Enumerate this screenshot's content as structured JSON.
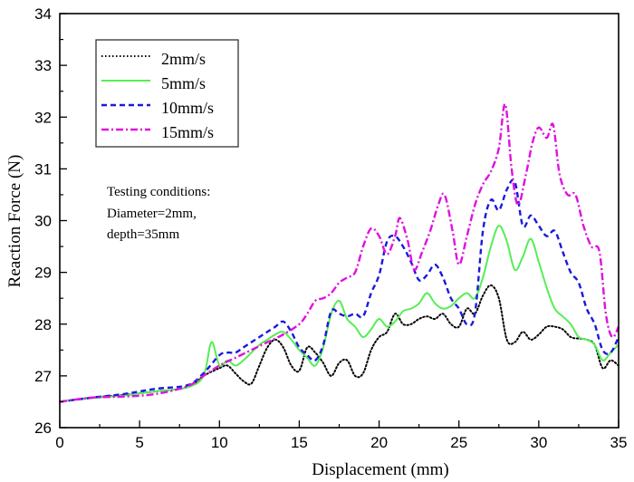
{
  "chart_data": {
    "type": "line",
    "title": "",
    "xlabel": "Displacement (mm)",
    "ylabel": "Reaction Force (N)",
    "xlim": [
      0,
      35
    ],
    "ylim": [
      26,
      34
    ],
    "xticks": [
      0,
      5,
      10,
      15,
      20,
      25,
      30,
      35
    ],
    "xtick_labels": [
      "0",
      "5",
      "10",
      "15",
      "20",
      "25",
      "30",
      "35"
    ],
    "yticks": [
      26,
      27,
      28,
      29,
      30,
      31,
      32,
      33,
      34
    ],
    "ytick_labels": [
      "26",
      "27",
      "28",
      "29",
      "30",
      "31",
      "32",
      "33",
      "34"
    ],
    "grid": false,
    "legend_position": "top-left",
    "annotation": [
      "Testing conditions:",
      "Diameter=2mm,",
      "depth=35mm"
    ],
    "series": [
      {
        "name": "2mm/s",
        "color": "#000000",
        "style": "dotted",
        "x": [
          0,
          2,
          4,
          6,
          8,
          9,
          10,
          10.5,
          11,
          11.5,
          12,
          12.5,
          13,
          13.5,
          14,
          14.5,
          15,
          15.5,
          16,
          16.5,
          17,
          17.5,
          18,
          18.5,
          19,
          19.5,
          20,
          20.5,
          21,
          21.5,
          22,
          22.5,
          23,
          23.5,
          24,
          24.5,
          25,
          25.5,
          26,
          26.5,
          27,
          27.5,
          28,
          28.5,
          29,
          29.5,
          30,
          30.5,
          31,
          31.5,
          32,
          32.5,
          33,
          33.5,
          34,
          34.5,
          35
        ],
        "values": [
          26.5,
          26.58,
          26.63,
          26.7,
          26.78,
          27.0,
          27.15,
          27.2,
          27.05,
          26.9,
          26.85,
          27.2,
          27.55,
          27.7,
          27.55,
          27.2,
          27.1,
          27.55,
          27.45,
          27.25,
          27.0,
          27.25,
          27.3,
          27.0,
          27.05,
          27.5,
          27.75,
          27.85,
          28.2,
          28.0,
          28.0,
          28.1,
          28.15,
          28.1,
          28.2,
          28.0,
          27.95,
          28.3,
          28.2,
          28.55,
          28.75,
          28.5,
          27.7,
          27.65,
          27.85,
          27.7,
          27.8,
          27.95,
          27.95,
          27.9,
          27.75,
          27.72,
          27.7,
          27.6,
          27.15,
          27.3,
          27.2
        ]
      },
      {
        "name": "5mm/s",
        "color": "#55ee55",
        "style": "solid",
        "x": [
          0,
          2,
          4,
          6,
          8,
          9,
          9.5,
          10,
          10.5,
          11,
          11.5,
          12,
          12.5,
          13,
          13.5,
          14,
          14.5,
          15,
          15.5,
          16,
          16.5,
          17,
          17.5,
          18,
          18.5,
          19,
          19.5,
          20,
          20.5,
          21,
          21.5,
          22,
          22.5,
          23,
          23.5,
          24,
          24.5,
          25,
          25.5,
          26,
          26.5,
          27,
          27.5,
          28,
          28.5,
          29,
          29.5,
          30,
          30.5,
          31,
          31.5,
          32,
          32.5,
          33,
          33.5,
          34,
          34.5,
          35
        ],
        "values": [
          26.5,
          26.57,
          26.62,
          26.7,
          26.78,
          27.0,
          27.65,
          27.2,
          27.3,
          27.2,
          27.3,
          27.45,
          27.6,
          27.7,
          27.8,
          27.85,
          27.7,
          27.5,
          27.35,
          27.2,
          27.55,
          28.2,
          28.45,
          28.1,
          27.95,
          27.75,
          27.9,
          28.1,
          27.95,
          28.05,
          28.25,
          28.3,
          28.4,
          28.6,
          28.4,
          28.3,
          28.35,
          28.5,
          28.6,
          28.5,
          28.9,
          29.5,
          29.9,
          29.6,
          29.05,
          29.3,
          29.65,
          29.2,
          28.7,
          28.3,
          28.15,
          28.0,
          27.75,
          27.7,
          27.6,
          27.3,
          27.45,
          27.6
        ]
      },
      {
        "name": "10mm/s",
        "color": "#1a1adc",
        "style": "dashed",
        "x": [
          0,
          2,
          4,
          6,
          8,
          9,
          10,
          10.5,
          11,
          11.5,
          12,
          12.5,
          13,
          13.5,
          14,
          14.5,
          15,
          15.5,
          16,
          16.5,
          17,
          17.5,
          18,
          18.5,
          19,
          19.5,
          20,
          20.5,
          21,
          21.5,
          22,
          22.5,
          23,
          23.5,
          24,
          24.5,
          25,
          25.5,
          26,
          26.5,
          27,
          27.5,
          28,
          28.5,
          29,
          29.5,
          30,
          30.5,
          31,
          31.5,
          32,
          32.5,
          33,
          33.5,
          34,
          34.5,
          35
        ],
        "values": [
          26.5,
          26.58,
          26.65,
          26.75,
          26.82,
          27.05,
          27.4,
          27.45,
          27.45,
          27.55,
          27.65,
          27.75,
          27.85,
          27.95,
          28.05,
          27.85,
          27.55,
          27.4,
          27.3,
          27.6,
          28.25,
          28.2,
          28.15,
          28.2,
          28.15,
          28.6,
          28.95,
          29.6,
          29.7,
          29.5,
          29.2,
          28.85,
          28.95,
          29.15,
          28.9,
          28.5,
          28.3,
          28.0,
          28.2,
          29.8,
          30.4,
          30.2,
          30.6,
          30.75,
          29.9,
          30.1,
          29.9,
          29.7,
          29.8,
          29.4,
          29.0,
          28.8,
          28.3,
          28.0,
          27.5,
          27.45,
          27.75
        ]
      },
      {
        "name": "15mm/s",
        "color": "#e010e0",
        "style": "dash-dot",
        "x": [
          0,
          2,
          4,
          6,
          8,
          9,
          10,
          11,
          12,
          13,
          14,
          15,
          15.5,
          16,
          16.5,
          17,
          17.5,
          18,
          18.5,
          19,
          19.5,
          20,
          20.5,
          21,
          21.3,
          21.8,
          22.2,
          22.7,
          23.2,
          23.7,
          24.1,
          24.6,
          25,
          25.5,
          26,
          26.5,
          27,
          27.5,
          27.9,
          28.3,
          28.7,
          29.2,
          29.6,
          30,
          30.5,
          30.9,
          31.3,
          31.8,
          32.3,
          32.8,
          33.3,
          33.8,
          34.2,
          34.6,
          35
        ],
        "values": [
          26.5,
          26.58,
          26.6,
          26.65,
          26.8,
          27.0,
          27.2,
          27.35,
          27.5,
          27.65,
          27.8,
          28.0,
          28.2,
          28.45,
          28.5,
          28.6,
          28.8,
          28.9,
          29.0,
          29.5,
          29.85,
          29.7,
          29.35,
          29.7,
          30.05,
          29.6,
          29.05,
          29.4,
          29.8,
          30.3,
          30.5,
          29.8,
          29.15,
          29.7,
          30.3,
          30.7,
          30.95,
          31.4,
          32.25,
          31.0,
          30.3,
          30.9,
          31.5,
          31.8,
          31.6,
          31.85,
          30.9,
          30.5,
          30.5,
          29.9,
          29.5,
          29.4,
          28.2,
          27.75,
          27.95
        ]
      }
    ]
  }
}
